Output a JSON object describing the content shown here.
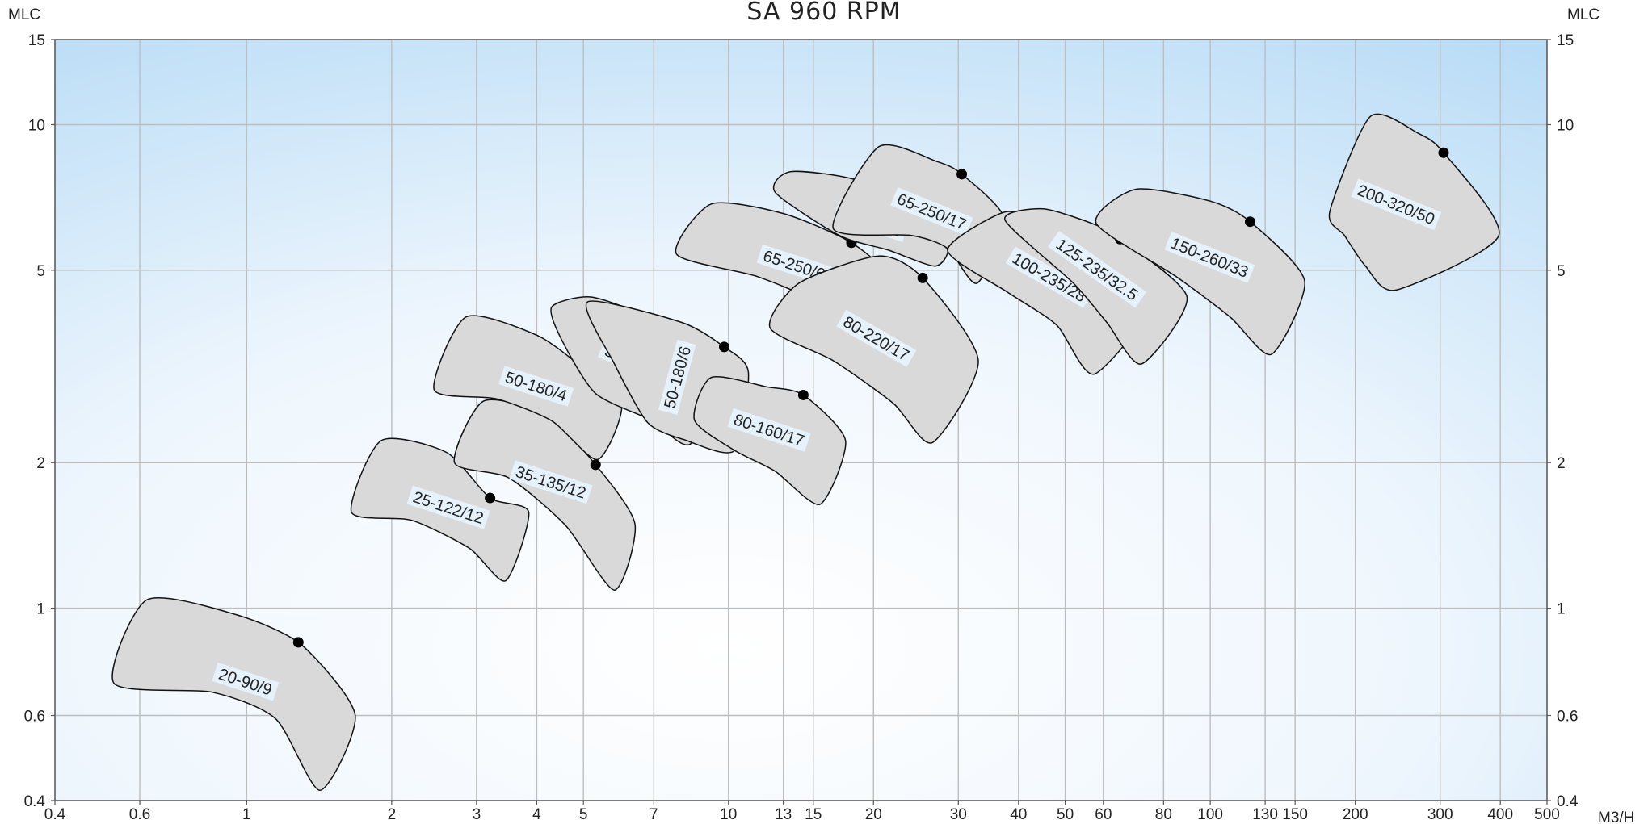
{
  "chart_data": {
    "type": "line",
    "title": "SA 960 RPM",
    "xlabel": "M3/H",
    "ylabel": "MLC",
    "ylabel_right": "MLC",
    "x_scale": "log",
    "y_scale": "log",
    "xlim": [
      0.4,
      500
    ],
    "ylim": [
      0.4,
      15
    ],
    "grid": true,
    "x_ticks": [
      0.4,
      0.6,
      1,
      2,
      3,
      4,
      5,
      7,
      10,
      13,
      15,
      20,
      30,
      40,
      50,
      60,
      80,
      100,
      130,
      150,
      200,
      300,
      400,
      500
    ],
    "x_tick_labels": [
      "0.4",
      "0.6",
      "1",
      "2",
      "3",
      "4",
      "5",
      "7",
      "10",
      "13",
      "15",
      "20",
      "30",
      "40",
      "50",
      "60",
      "80",
      "100",
      "130",
      "150",
      "200",
      "300",
      "400",
      "500"
    ],
    "y_ticks": [
      0.4,
      0.6,
      1,
      2,
      5,
      10,
      15
    ],
    "y_tick_labels": [
      "0.4",
      "0.6",
      "1",
      "2",
      "5",
      "10",
      "15"
    ],
    "series": [
      {
        "name": "20-90/9",
        "bep": {
          "x": 1.28,
          "y": 0.85
        },
        "angle": 18,
        "outline": [
          [
            0.53,
            0.7
          ],
          [
            0.62,
            1.04
          ],
          [
            0.95,
            0.97
          ],
          [
            1.3,
            0.84
          ],
          [
            1.68,
            0.6
          ],
          [
            1.42,
            0.42
          ],
          [
            1.15,
            0.59
          ],
          [
            0.85,
            0.67
          ]
        ]
      },
      {
        "name": "25-122/12",
        "bep": {
          "x": 3.2,
          "y": 1.69
        },
        "angle": 18,
        "outline": [
          [
            1.65,
            1.58
          ],
          [
            1.9,
            2.22
          ],
          [
            2.6,
            2.1
          ],
          [
            3.2,
            1.69
          ],
          [
            3.85,
            1.58
          ],
          [
            3.45,
            1.14
          ],
          [
            2.9,
            1.33
          ],
          [
            2.2,
            1.52
          ]
        ]
      },
      {
        "name": "35-135/12",
        "bep": {
          "x": 5.3,
          "y": 1.98
        },
        "angle": 18,
        "outline": [
          [
            2.7,
            2.0
          ],
          [
            3.1,
            2.68
          ],
          [
            4.2,
            2.5
          ],
          [
            5.3,
            1.98
          ],
          [
            6.4,
            1.49
          ],
          [
            5.8,
            1.09
          ],
          [
            4.6,
            1.48
          ],
          [
            3.5,
            1.86
          ]
        ]
      },
      {
        "name": "50-180/4",
        "bep": {
          "x": 5.0,
          "y": 3.13
        },
        "angle": 18,
        "outline": [
          [
            2.45,
            2.83
          ],
          [
            2.85,
            4.0
          ],
          [
            4.0,
            3.67
          ],
          [
            5.0,
            3.13
          ],
          [
            6.0,
            2.62
          ],
          [
            5.35,
            2.03
          ],
          [
            4.3,
            2.44
          ],
          [
            3.3,
            2.71
          ]
        ]
      },
      {
        "name": "50-180/8",
        "bep": {
          "x": 8.6,
          "y": 3.36
        },
        "angle": 22,
        "outline": [
          [
            4.3,
            4.2
          ],
          [
            5.2,
            4.4
          ],
          [
            7.0,
            3.95
          ],
          [
            8.6,
            3.36
          ],
          [
            9.7,
            2.87
          ],
          [
            8.3,
            2.18
          ],
          [
            6.9,
            2.45
          ],
          [
            5.3,
            2.78
          ],
          [
            4.5,
            3.6
          ]
        ]
      },
      {
        "name": "50-180/6",
        "bep": {
          "x": 9.8,
          "y": 3.47
        },
        "angle": -75,
        "outline": [
          [
            5.1,
            4.3
          ],
          [
            8.0,
            3.9
          ],
          [
            9.8,
            3.47
          ],
          [
            11.0,
            3.08
          ],
          [
            10.3,
            2.12
          ],
          [
            8.1,
            2.23
          ],
          [
            6.8,
            2.42
          ],
          [
            5.8,
            3.2
          ]
        ]
      },
      {
        "name": "80-160/17",
        "bep": {
          "x": 14.3,
          "y": 2.76
        },
        "angle": 18,
        "outline": [
          [
            8.5,
            2.45
          ],
          [
            9.2,
            3.0
          ],
          [
            12.0,
            2.87
          ],
          [
            14.3,
            2.76
          ],
          [
            17.5,
            2.22
          ],
          [
            15.5,
            1.64
          ],
          [
            12.5,
            1.92
          ],
          [
            10.3,
            2.12
          ]
        ]
      },
      {
        "name": "65-250/6",
        "bep": {
          "x": 18.0,
          "y": 5.7
        },
        "angle": 18,
        "outline": [
          [
            7.8,
            5.4
          ],
          [
            9.2,
            6.85
          ],
          [
            13.0,
            6.55
          ],
          [
            18.0,
            5.7
          ],
          [
            21.5,
            4.75
          ],
          [
            19.0,
            3.45
          ],
          [
            15.5,
            4.25
          ],
          [
            11.5,
            4.85
          ]
        ]
      },
      {
        "name": "65-250/8",
        "bep": {
          "x": 25.5,
          "y": 6.05
        },
        "angle": 18,
        "outline": [
          [
            12.5,
            7.25
          ],
          [
            13.5,
            8.0
          ],
          [
            19.0,
            7.6
          ],
          [
            25.5,
            6.05
          ],
          [
            28.5,
            5.5
          ],
          [
            26.8,
            5.1
          ],
          [
            21.5,
            5.5
          ],
          [
            17.0,
            5.9
          ]
        ]
      },
      {
        "name": "80-220/17",
        "bep": {
          "x": 25.3,
          "y": 4.82
        },
        "angle": 30,
        "outline": [
          [
            12.2,
            3.8
          ],
          [
            14.0,
            4.7
          ],
          [
            20.5,
            5.35
          ],
          [
            25.3,
            4.82
          ],
          [
            33.0,
            3.25
          ],
          [
            26.5,
            2.2
          ],
          [
            22.0,
            2.65
          ],
          [
            16.5,
            3.25
          ]
        ]
      },
      {
        "name": "65-250/17",
        "bep": {
          "x": 30.5,
          "y": 7.9
        },
        "angle": 22,
        "outline": [
          [
            16.5,
            6.1
          ],
          [
            20.5,
            9.0
          ],
          [
            27.0,
            8.4
          ],
          [
            30.5,
            7.9
          ],
          [
            37.5,
            6.35
          ],
          [
            32.8,
            4.7
          ],
          [
            28.5,
            5.55
          ],
          [
            24.0,
            5.9
          ]
        ]
      },
      {
        "name": "100-235/28",
        "bep": {
          "x": 53.0,
          "y": 5.5
        },
        "angle": 30,
        "outline": [
          [
            28.5,
            5.5
          ],
          [
            37.5,
            6.6
          ],
          [
            46.0,
            6.2
          ],
          [
            53.0,
            5.5
          ],
          [
            76.5,
            4.45
          ],
          [
            57.5,
            3.05
          ],
          [
            48.0,
            3.85
          ],
          [
            38.0,
            4.5
          ]
        ]
      },
      {
        "name": "125-235/32.5",
        "bep": {
          "x": 65.0,
          "y": 5.8
        },
        "angle": 35,
        "outline": [
          [
            37.5,
            6.35
          ],
          [
            45.0,
            6.7
          ],
          [
            58.0,
            6.2
          ],
          [
            65.0,
            5.8
          ],
          [
            89.5,
            4.4
          ],
          [
            72.0,
            3.2
          ],
          [
            61.0,
            3.9
          ],
          [
            52.0,
            4.7
          ]
        ]
      },
      {
        "name": "150-260/33",
        "bep": {
          "x": 121.0,
          "y": 6.3
        },
        "angle": 22,
        "outline": [
          [
            58.0,
            6.25
          ],
          [
            70.0,
            7.35
          ],
          [
            100.0,
            6.95
          ],
          [
            121.0,
            6.3
          ],
          [
            157.0,
            4.75
          ],
          [
            134.0,
            3.35
          ],
          [
            110.0,
            4.0
          ],
          [
            85.0,
            4.85
          ]
        ]
      },
      {
        "name": "200-320/50",
        "bep": {
          "x": 305.0,
          "y": 8.75
        },
        "angle": 22,
        "outline": [
          [
            177.0,
            6.6
          ],
          [
            215.0,
            10.4
          ],
          [
            270.0,
            9.6
          ],
          [
            305.0,
            8.75
          ],
          [
            397.0,
            5.9
          ],
          [
            243.0,
            4.55
          ],
          [
            210.0,
            5.1
          ],
          [
            190.0,
            5.9
          ]
        ]
      }
    ]
  }
}
